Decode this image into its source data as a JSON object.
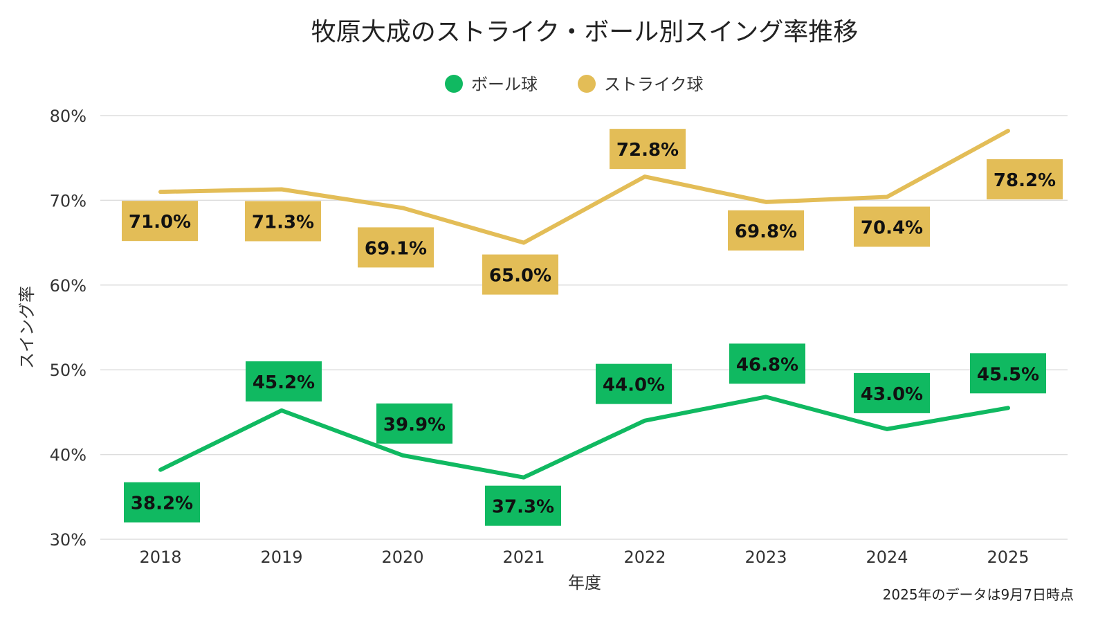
{
  "chart_data": {
    "type": "line",
    "title": "牧原大成のストライク・ボール別スイング率推移",
    "xlabel": "年度",
    "ylabel": "スイング率",
    "categories": [
      "2018",
      "2019",
      "2020",
      "2021",
      "2022",
      "2023",
      "2024",
      "2025"
    ],
    "ylim": [
      30,
      80
    ],
    "yticks": [
      30,
      40,
      50,
      60,
      70,
      80
    ],
    "ytick_labels": [
      "30%",
      "40%",
      "50%",
      "60%",
      "70%",
      "80%"
    ],
    "grid": true,
    "legend_position": "top-center",
    "series": [
      {
        "name": "ボール球",
        "color": "#10b961",
        "values": [
          38.2,
          45.2,
          39.9,
          37.3,
          44.0,
          46.8,
          43.0,
          45.5
        ],
        "labels": [
          "38.2%",
          "45.2%",
          "39.9%",
          "37.3%",
          "44.0%",
          "46.8%",
          "43.0%",
          "45.5%"
        ]
      },
      {
        "name": "ストライク球",
        "color": "#e3bd57",
        "values": [
          71.0,
          71.3,
          69.1,
          65.0,
          72.8,
          69.8,
          70.4,
          78.2
        ],
        "labels": [
          "71.0%",
          "71.3%",
          "69.1%",
          "65.0%",
          "72.8%",
          "69.8%",
          "70.4%",
          "78.2%"
        ]
      }
    ],
    "annotation": "2025年のデータは9月7日時点"
  }
}
